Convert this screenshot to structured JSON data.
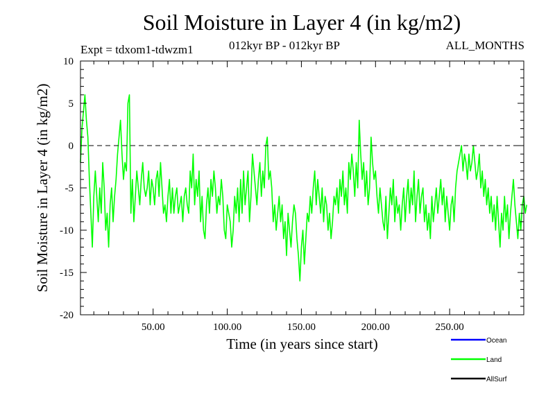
{
  "chart_data": {
    "type": "line",
    "title": "Soil Moisture in Layer 4 (in kg/m2)",
    "subtitle_left": "Expt = tdxom1-tdwzm1",
    "subtitle_center": "012kyr BP - 012kyr BP",
    "subtitle_right": "ALL_MONTHS",
    "xlabel": "Time (in years since start)",
    "ylabel": "Soil Moisture in Layer 4 (in kg/m2)",
    "xlim": [
      1,
      300
    ],
    "ylim": [
      -20,
      10
    ],
    "x_ticks": [
      50,
      100,
      150,
      200,
      250
    ],
    "x_tick_labels": [
      "50.00",
      "100.00",
      "150.00",
      "200.00",
      "250.00"
    ],
    "y_ticks": [
      10,
      5,
      0,
      -5,
      -10,
      -15,
      -20
    ],
    "y_tick_labels": [
      "10",
      "5",
      "0",
      "-5",
      "-10",
      "-15",
      "-20"
    ],
    "zero_line": 0,
    "legend": [
      {
        "name": "Ocean",
        "color": "#0000ff",
        "plotted": false
      },
      {
        "name": "Land",
        "color": "#00ff00",
        "plotted": true
      },
      {
        "name": "AllSurf",
        "color": "#000000",
        "plotted": false
      }
    ],
    "series": [
      {
        "name": "Land",
        "color": "#00ff00",
        "x_start": 1,
        "x_step": 1,
        "values": [
          -2,
          2,
          4,
          6,
          3,
          1,
          -4,
          -8,
          -12,
          -6,
          -3,
          -6,
          -9,
          -5,
          -8,
          -2,
          -5,
          -10,
          -8,
          -12,
          -7,
          -5,
          -9,
          -6,
          -4,
          -1,
          1,
          3,
          -1,
          -4,
          -2,
          -3,
          5,
          6,
          -8,
          -4,
          -9,
          -6,
          -3,
          -5,
          -7,
          -4,
          -2,
          -5,
          -6,
          -5,
          -3,
          -7,
          -4,
          -5,
          -7,
          -4,
          -3,
          -6,
          -2,
          -5,
          -8,
          -7,
          -9,
          -6,
          -4,
          -8,
          -5,
          -8,
          -6,
          -5,
          -8,
          -7,
          -6,
          -9,
          -6,
          -5,
          -7,
          -8,
          -3,
          -5,
          -1,
          -7,
          -4,
          -6,
          -3,
          -9,
          -6,
          -10,
          -11,
          -7,
          -5,
          -8,
          -4,
          -6,
          -3,
          -5,
          -8,
          -6,
          -7,
          -4,
          -6,
          -10,
          -11,
          -7,
          -8,
          -9,
          -12,
          -10,
          -6,
          -8,
          -5,
          -9,
          -4,
          -8,
          -3,
          -7,
          -5,
          -3,
          -9,
          -6,
          -1,
          -3,
          -5,
          -7,
          -4,
          -2,
          -6,
          -3,
          -5,
          0,
          1,
          -4,
          -3,
          -5,
          -9,
          -7,
          -10,
          -8,
          -6,
          -9,
          -7,
          -11,
          -9,
          -13,
          -8,
          -10,
          -12,
          -9,
          -7,
          -8,
          -11,
          -13,
          -16,
          -12,
          -10,
          -14,
          -11,
          -8,
          -9,
          -6,
          -8,
          -5,
          -3,
          -7,
          -4,
          -6,
          -8,
          -5,
          -9,
          -6,
          -7,
          -10,
          -8,
          -11,
          -9,
          -6,
          -7,
          -5,
          -8,
          -4,
          -6,
          -3,
          -7,
          -5,
          -8,
          -2,
          -4,
          -1,
          -3,
          -6,
          -2,
          -5,
          3,
          -1,
          -4,
          -2,
          -6,
          -3,
          -7,
          -5,
          1,
          -2,
          -4,
          -3,
          -6,
          -8,
          -5,
          -7,
          -9,
          -10,
          -6,
          -11,
          -8,
          -5,
          -7,
          -4,
          -9,
          -6,
          -8,
          -7,
          -10,
          -7,
          -5,
          -9,
          -6,
          -4,
          -8,
          -5,
          -7,
          -3,
          -9,
          -6,
          -4,
          -8,
          -6,
          -5,
          -9,
          -7,
          -10,
          -8,
          -11,
          -6,
          -9,
          -7,
          -5,
          -8,
          -6,
          -4,
          -7,
          -5,
          -9,
          -6,
          -8,
          -10,
          -7,
          -6,
          -9,
          -5,
          -3,
          -2,
          -1,
          0,
          -3,
          -1,
          -2,
          -4,
          -1,
          -3,
          -2,
          0,
          -2,
          -4,
          -3,
          -1,
          -5,
          -3,
          -6,
          -4,
          -7,
          -5,
          -8,
          -6,
          -9,
          -7,
          -10,
          -6,
          -9,
          -12,
          -8,
          -10,
          -6,
          -9,
          -7,
          -11,
          -8,
          -6,
          -4,
          -7,
          -9,
          -11,
          -8,
          -10,
          -7,
          -6,
          -8,
          -7
        ]
      }
    ]
  }
}
